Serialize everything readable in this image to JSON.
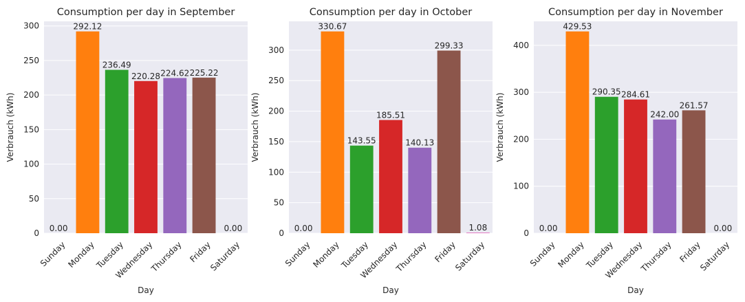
{
  "chart_data": [
    {
      "type": "bar",
      "title": "Consumption per day in September",
      "xlabel": "Day",
      "ylabel": "Verbrauch (kWh)",
      "categories": [
        "Sunday",
        "Monday",
        "Tuesday",
        "Wednesday",
        "Thursday",
        "Friday",
        "Saturday"
      ],
      "values": [
        0.0,
        292.12,
        236.49,
        220.28,
        224.62,
        225.22,
        0.0
      ],
      "value_labels": [
        "0.00",
        "292.12",
        "236.49",
        "220.28",
        "224.62",
        "225.22",
        "0.00"
      ],
      "ylim": [
        0,
        306.7
      ],
      "yticks": [
        0,
        50,
        100,
        150,
        200,
        250,
        300
      ],
      "grid": true
    },
    {
      "type": "bar",
      "title": "Consumption per day in October",
      "xlabel": "Day",
      "ylabel": "Verbrauch (kWh)",
      "categories": [
        "Sunday",
        "Monday",
        "Tuesday",
        "Wednesday",
        "Thursday",
        "Friday",
        "Saturday"
      ],
      "values": [
        0.0,
        330.67,
        143.55,
        185.51,
        140.13,
        299.33,
        1.08
      ],
      "value_labels": [
        "0.00",
        "330.67",
        "143.55",
        "185.51",
        "140.13",
        "299.33",
        "1.08"
      ],
      "ylim": [
        0,
        347.2
      ],
      "yticks": [
        0,
        50,
        100,
        150,
        200,
        250,
        300
      ],
      "grid": true
    },
    {
      "type": "bar",
      "title": "Consumption per day in November",
      "xlabel": "Day",
      "ylabel": "Verbrauch (kWh)",
      "categories": [
        "Sunday",
        "Monday",
        "Tuesday",
        "Wednesday",
        "Thursday",
        "Friday",
        "Saturday"
      ],
      "values": [
        0.0,
        429.53,
        290.35,
        284.61,
        242.0,
        261.57,
        0.0
      ],
      "value_labels": [
        "0.00",
        "429.53",
        "290.35",
        "284.61",
        "242.00",
        "261.57",
        "0.00"
      ],
      "ylim": [
        0,
        451
      ],
      "yticks": [
        0,
        100,
        200,
        300,
        400
      ],
      "grid": true
    }
  ],
  "colors": {
    "axes_background": "#eaeaf2",
    "grid": "#ffffff",
    "bars": [
      "#1f77b4",
      "#ff7f0e",
      "#2ca02c",
      "#d62728",
      "#9467bd",
      "#8c564b",
      "#e377c2"
    ]
  }
}
